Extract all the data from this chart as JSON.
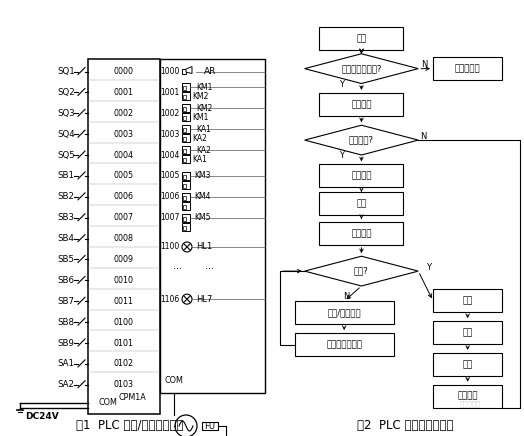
{
  "background_color": "#ffffff",
  "fig_caption_left": "图1  PLC 输入/输出端接线图",
  "fig_caption_right": "图2  PLC 主要功能流程图",
  "left_labels": [
    "SQ1",
    "SQ2",
    "SQ3",
    "SQ4",
    "SQ5",
    "SB1",
    "SB2",
    "SB3",
    "SB4",
    "SB5",
    "SB6",
    "SB7",
    "SB8",
    "SB9",
    "SA1",
    "SA2"
  ],
  "left_codes": [
    "0000",
    "0001",
    "0002",
    "0003",
    "0004",
    "0005",
    "0006",
    "0007",
    "0008",
    "0009",
    "0010",
    "0011",
    "0100",
    "0101",
    "0102",
    "0103"
  ],
  "right_codes": [
    "1000",
    "1001",
    "1002",
    "1003",
    "1004",
    "1005",
    "1006",
    "1007",
    "1100",
    "1106"
  ],
  "right_labels": [
    "AR",
    "KM1 KM2",
    "KM2 KM1",
    "KA1 KA2",
    "KA2 KA1",
    "KM3",
    "KM4",
    "KM5",
    "HL1",
    "HL7"
  ]
}
